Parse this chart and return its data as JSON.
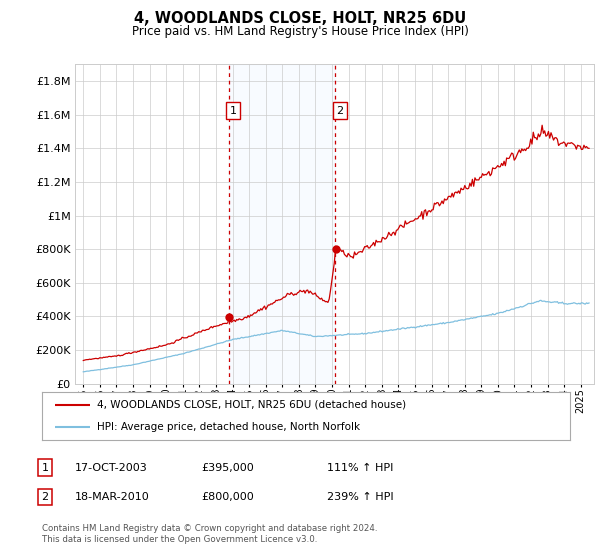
{
  "title": "4, WOODLANDS CLOSE, HOLT, NR25 6DU",
  "subtitle": "Price paid vs. HM Land Registry's House Price Index (HPI)",
  "legend_line1": "4, WOODLANDS CLOSE, HOLT, NR25 6DU (detached house)",
  "legend_line2": "HPI: Average price, detached house, North Norfolk",
  "sale1_date": "17-OCT-2003",
  "sale1_price": "£395,000",
  "sale1_hpi": "111% ↑ HPI",
  "sale1_year": 2003.79,
  "sale1_value": 395000,
  "sale2_date": "18-MAR-2010",
  "sale2_price": "£800,000",
  "sale2_hpi": "239% ↑ HPI",
  "sale2_year": 2010.21,
  "sale2_value": 800000,
  "footnote": "Contains HM Land Registry data © Crown copyright and database right 2024.\nThis data is licensed under the Open Government Licence v3.0.",
  "hpi_color": "#7fbfdf",
  "price_color": "#cc0000",
  "marker_color": "#cc0000",
  "bg_color": "#ffffff",
  "grid_color": "#cccccc",
  "shade_color": "#ddeeff",
  "vline_color": "#cc0000",
  "ylim_max": 1900000,
  "xlim_start": 1994.5,
  "xlim_end": 2025.8
}
